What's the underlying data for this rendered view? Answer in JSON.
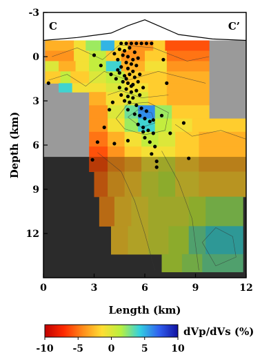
{
  "chart_data": {
    "type": "heatmap",
    "title": "",
    "xlabel": "Length (km)",
    "ylabel": "Depth (km)",
    "xlim": [
      0,
      12
    ],
    "ylim": [
      -3,
      15
    ],
    "y_inverted": true,
    "x_ticks": [
      "0",
      "3",
      "6",
      "9",
      "12"
    ],
    "x_tick_values": [
      0,
      3,
      6,
      9,
      12
    ],
    "y_ticks": [
      "-3",
      "0",
      "3",
      "6",
      "9",
      "12"
    ],
    "y_tick_values": [
      -3,
      0,
      3,
      6,
      9,
      12
    ],
    "corner_labels": {
      "left": "C",
      "right": "C’"
    },
    "colorbar": {
      "label": "dVp/dVs (%)",
      "ticks": [
        "-10",
        "-5",
        "0",
        "5",
        "10"
      ],
      "tick_values": [
        -10,
        -5,
        0,
        5,
        10
      ],
      "range": [
        -10,
        10
      ],
      "colors": [
        "#c00000",
        "#ff2a00",
        "#ff8c1a",
        "#ffdd33",
        "#b8f040",
        "#33d0e0",
        "#3060f0",
        "#1010a0"
      ]
    },
    "topography": [
      [
        0,
        -1.1
      ],
      [
        2,
        -1.3
      ],
      [
        4,
        -1.6
      ],
      [
        5,
        -2.1
      ],
      [
        6,
        -2.5
      ],
      [
        7,
        -2.0
      ],
      [
        8,
        -1.5
      ],
      [
        10,
        -1.2
      ],
      [
        12,
        -1.1
      ]
    ],
    "cells": [
      {
        "x": [
          0.1,
          1.8
        ],
        "z": [
          -1.1,
          -0.4
        ],
        "v": -3
      },
      {
        "x": [
          1.8,
          2.5
        ],
        "z": [
          -1.1,
          -0.4
        ],
        "v": -1
      },
      {
        "x": [
          2.5,
          3.4
        ],
        "z": [
          -1.1,
          -0.4
        ],
        "v": 2
      },
      {
        "x": [
          3.4,
          4.2
        ],
        "z": [
          -1.1,
          -0.4
        ],
        "v": 5
      },
      {
        "x": [
          4.2,
          5.0
        ],
        "z": [
          -1.1,
          -0.4
        ],
        "v": -1
      },
      {
        "x": [
          5.0,
          6.5
        ],
        "z": [
          -1.1,
          -0.4
        ],
        "v": -4
      },
      {
        "x": [
          6.5,
          7.2
        ],
        "z": [
          -1.1,
          -0.4
        ],
        "v": -2
      },
      {
        "x": [
          7.2,
          9.8
        ],
        "z": [
          -1.1,
          -0.4
        ],
        "v": -6
      },
      {
        "x": [
          0.1,
          1.8
        ],
        "z": [
          -0.4,
          0.3
        ],
        "v": -4
      },
      {
        "x": [
          1.8,
          2.7
        ],
        "z": [
          -0.4,
          0.3
        ],
        "v": -1
      },
      {
        "x": [
          2.7,
          3.7
        ],
        "z": [
          -0.4,
          0.3
        ],
        "v": 1
      },
      {
        "x": [
          3.7,
          4.6
        ],
        "z": [
          -0.4,
          0.3
        ],
        "v": -2
      },
      {
        "x": [
          4.6,
          6.0
        ],
        "z": [
          -0.4,
          0.3
        ],
        "v": -4
      },
      {
        "x": [
          6.0,
          7.3
        ],
        "z": [
          -0.4,
          0.3
        ],
        "v": -2
      },
      {
        "x": [
          7.3,
          9.8
        ],
        "z": [
          -0.4,
          0.3
        ],
        "v": -5
      },
      {
        "x": [
          0.1,
          0.9
        ],
        "z": [
          0.3,
          1.0
        ],
        "v": 0
      },
      {
        "x": [
          0.9,
          1.9
        ],
        "z": [
          0.3,
          1.0
        ],
        "v": -3
      },
      {
        "x": [
          1.9,
          2.7
        ],
        "z": [
          0.3,
          1.0
        ],
        "v": -1
      },
      {
        "x": [
          2.7,
          3.7
        ],
        "z": [
          0.3,
          1.0
        ],
        "v": 1
      },
      {
        "x": [
          3.7,
          4.6
        ],
        "z": [
          0.3,
          1.0
        ],
        "v": 4
      },
      {
        "x": [
          4.6,
          6.0
        ],
        "z": [
          0.3,
          1.0
        ],
        "v": -3
      },
      {
        "x": [
          6.0,
          7.3
        ],
        "z": [
          0.3,
          1.0
        ],
        "v": -1
      },
      {
        "x": [
          7.3,
          9.8
        ],
        "z": [
          0.3,
          1.0
        ],
        "v": -4
      },
      {
        "x": [
          0.1,
          1.0
        ],
        "z": [
          1.0,
          1.8
        ],
        "v": -2
      },
      {
        "x": [
          1.0,
          1.6
        ],
        "z": [
          1.0,
          1.8
        ],
        "v": 1
      },
      {
        "x": [
          1.6,
          2.7
        ],
        "z": [
          1.0,
          1.8
        ],
        "v": -2
      },
      {
        "x": [
          2.7,
          3.7
        ],
        "z": [
          1.0,
          1.8
        ],
        "v": 0
      },
      {
        "x": [
          3.7,
          4.8
        ],
        "z": [
          1.0,
          1.8
        ],
        "v": 1
      },
      {
        "x": [
          4.8,
          6.0
        ],
        "z": [
          1.0,
          1.8
        ],
        "v": -2
      },
      {
        "x": [
          6.0,
          7.3
        ],
        "z": [
          1.0,
          1.8
        ],
        "v": -2
      },
      {
        "x": [
          7.3,
          9.8
        ],
        "z": [
          1.0,
          1.8
        ],
        "v": -3
      },
      {
        "x": [
          0.9,
          1.7
        ],
        "z": [
          1.8,
          2.4
        ],
        "v": 4
      },
      {
        "x": [
          1.7,
          2.7
        ],
        "z": [
          1.8,
          2.4
        ],
        "v": -1
      },
      {
        "x": [
          2.7,
          3.7
        ],
        "z": [
          1.8,
          2.4
        ],
        "v": -1
      },
      {
        "x": [
          3.7,
          4.8
        ],
        "z": [
          1.8,
          2.4
        ],
        "v": 0
      },
      {
        "x": [
          4.8,
          6.2
        ],
        "z": [
          1.8,
          2.4
        ],
        "v": -1
      },
      {
        "x": [
          6.2,
          7.3
        ],
        "z": [
          1.8,
          2.4
        ],
        "v": -2
      },
      {
        "x": [
          7.3,
          9.8
        ],
        "z": [
          1.8,
          2.4
        ],
        "v": -3
      },
      {
        "x": [
          2.7,
          3.7
        ],
        "z": [
          2.4,
          3.3
        ],
        "v": -3
      },
      {
        "x": [
          3.7,
          4.8
        ],
        "z": [
          2.4,
          3.3
        ],
        "v": -1
      },
      {
        "x": [
          4.8,
          6.2
        ],
        "z": [
          2.4,
          3.3
        ],
        "v": 0
      },
      {
        "x": [
          6.2,
          7.3
        ],
        "z": [
          2.4,
          3.3
        ],
        "v": -2
      },
      {
        "x": [
          7.3,
          9.8
        ],
        "z": [
          2.4,
          3.3
        ],
        "v": -3
      },
      {
        "x": [
          2.7,
          3.8
        ],
        "z": [
          3.3,
          4.2
        ],
        "v": -4
      },
      {
        "x": [
          3.8,
          4.8
        ],
        "z": [
          3.3,
          4.2
        ],
        "v": 0
      },
      {
        "x": [
          4.8,
          5.6
        ],
        "z": [
          3.3,
          4.2
        ],
        "v": 3
      },
      {
        "x": [
          5.6,
          6.6
        ],
        "z": [
          3.3,
          4.2
        ],
        "v": 6
      },
      {
        "x": [
          6.6,
          7.6
        ],
        "z": [
          3.3,
          4.2
        ],
        "v": 2
      },
      {
        "x": [
          7.6,
          9.8
        ],
        "z": [
          3.3,
          4.2
        ],
        "v": -2
      },
      {
        "x": [
          2.7,
          3.8
        ],
        "z": [
          4.2,
          5.1
        ],
        "v": -4
      },
      {
        "x": [
          3.8,
          4.8
        ],
        "z": [
          4.2,
          5.1
        ],
        "v": -1
      },
      {
        "x": [
          4.8,
          5.6
        ],
        "z": [
          4.2,
          5.1
        ],
        "v": 2
      },
      {
        "x": [
          5.6,
          6.6
        ],
        "z": [
          4.2,
          5.1
        ],
        "v": 4
      },
      {
        "x": [
          6.6,
          7.6
        ],
        "z": [
          4.2,
          5.1
        ],
        "v": 1
      },
      {
        "x": [
          7.6,
          8.8
        ],
        "z": [
          4.2,
          5.1
        ],
        "v": -1
      },
      {
        "x": [
          8.8,
          12.0
        ],
        "z": [
          4.2,
          5.1
        ],
        "v": -2
      },
      {
        "x": [
          2.7,
          3.8
        ],
        "z": [
          5.1,
          6.1
        ],
        "v": -5
      },
      {
        "x": [
          3.8,
          4.8
        ],
        "z": [
          5.1,
          6.1
        ],
        "v": -3
      },
      {
        "x": [
          4.8,
          5.8
        ],
        "z": [
          5.1,
          6.1
        ],
        "v": -1
      },
      {
        "x": [
          5.8,
          6.8
        ],
        "z": [
          5.1,
          6.1
        ],
        "v": 1
      },
      {
        "x": [
          6.8,
          7.8
        ],
        "z": [
          5.1,
          6.1
        ],
        "v": 0
      },
      {
        "x": [
          7.8,
          9.2
        ],
        "z": [
          5.1,
          6.1
        ],
        "v": -2
      },
      {
        "x": [
          9.2,
          12.0
        ],
        "z": [
          5.1,
          6.1
        ],
        "v": -3
      },
      {
        "x": [
          2.7,
          3.8
        ],
        "z": [
          6.1,
          6.8
        ],
        "v": -6
      },
      {
        "x": [
          3.8,
          4.8
        ],
        "z": [
          6.1,
          6.8
        ],
        "v": -4
      },
      {
        "x": [
          4.8,
          5.8
        ],
        "z": [
          6.1,
          6.8
        ],
        "v": -2
      },
      {
        "x": [
          5.8,
          6.8
        ],
        "z": [
          6.1,
          6.8
        ],
        "v": -1
      },
      {
        "x": [
          6.8,
          7.8
        ],
        "z": [
          6.1,
          6.8
        ],
        "v": -1
      },
      {
        "x": [
          7.8,
          9.2
        ],
        "z": [
          6.1,
          6.8
        ],
        "v": -2
      },
      {
        "x": [
          9.2,
          12.0
        ],
        "z": [
          6.1,
          6.8
        ],
        "v": -3
      },
      {
        "x": [
          2.7,
          3.8
        ],
        "z": [
          6.8,
          7.8
        ],
        "v": -6
      },
      {
        "x": [
          3.8,
          4.8
        ],
        "z": [
          6.8,
          7.8
        ],
        "v": -4
      },
      {
        "x": [
          4.8,
          5.8
        ],
        "z": [
          6.8,
          7.8
        ],
        "v": -3
      },
      {
        "x": [
          5.8,
          6.8
        ],
        "z": [
          6.8,
          7.8
        ],
        "v": -1
      },
      {
        "x": [
          6.8,
          7.8
        ],
        "z": [
          6.8,
          7.8
        ],
        "v": 0
      },
      {
        "x": [
          7.8,
          9.2
        ],
        "z": [
          6.8,
          7.8
        ],
        "v": -2
      },
      {
        "x": [
          9.2,
          12.0
        ],
        "z": [
          6.8,
          7.8
        ],
        "v": -3
      },
      {
        "x": [
          3.0,
          3.8
        ],
        "z": [
          7.8,
          9.5
        ],
        "v": -5
      },
      {
        "x": [
          3.8,
          4.8
        ],
        "z": [
          7.8,
          9.5
        ],
        "v": -3
      },
      {
        "x": [
          4.8,
          5.8
        ],
        "z": [
          7.8,
          9.5
        ],
        "v": -2
      },
      {
        "x": [
          5.8,
          6.8
        ],
        "z": [
          7.8,
          9.5
        ],
        "v": 0
      },
      {
        "x": [
          6.8,
          7.8
        ],
        "z": [
          7.8,
          9.5
        ],
        "v": 1
      },
      {
        "x": [
          7.8,
          9.2
        ],
        "z": [
          7.8,
          9.5
        ],
        "v": -1
      },
      {
        "x": [
          9.2,
          12.0
        ],
        "z": [
          7.8,
          9.5
        ],
        "v": -2
      },
      {
        "x": [
          3.3,
          4.2
        ],
        "z": [
          9.5,
          11.5
        ],
        "v": -4
      },
      {
        "x": [
          4.2,
          5.2
        ],
        "z": [
          9.5,
          11.5
        ],
        "v": -2
      },
      {
        "x": [
          5.2,
          6.2
        ],
        "z": [
          9.5,
          11.5
        ],
        "v": -1
      },
      {
        "x": [
          6.2,
          7.4
        ],
        "z": [
          9.5,
          11.5
        ],
        "v": 0
      },
      {
        "x": [
          7.4,
          8.6
        ],
        "z": [
          9.5,
          11.5
        ],
        "v": 0
      },
      {
        "x": [
          8.6,
          9.6
        ],
        "z": [
          9.5,
          11.5
        ],
        "v": 1
      },
      {
        "x": [
          9.6,
          11.8
        ],
        "z": [
          9.5,
          11.5
        ],
        "v": 2
      },
      {
        "x": [
          4.0,
          5.0
        ],
        "z": [
          11.5,
          13.4
        ],
        "v": -2
      },
      {
        "x": [
          5.0,
          6.2
        ],
        "z": [
          11.5,
          13.4
        ],
        "v": -1
      },
      {
        "x": [
          6.2,
          7.4
        ],
        "z": [
          11.5,
          13.4
        ],
        "v": 0
      },
      {
        "x": [
          7.4,
          8.6
        ],
        "z": [
          11.5,
          13.4
        ],
        "v": 1
      },
      {
        "x": [
          8.6,
          9.6
        ],
        "z": [
          11.5,
          13.4
        ],
        "v": 3
      },
      {
        "x": [
          9.6,
          11.8
        ],
        "z": [
          11.5,
          13.4
        ],
        "v": 4
      },
      {
        "x": [
          7.0,
          8.2
        ],
        "z": [
          13.4,
          14.6
        ],
        "v": 1
      },
      {
        "x": [
          8.2,
          9.4
        ],
        "z": [
          13.4,
          14.6
        ],
        "v": 2
      },
      {
        "x": [
          9.4,
          11.8
        ],
        "z": [
          13.4,
          14.6
        ],
        "v": 3
      }
    ],
    "earthquakes": [
      [
        4.6,
        -0.9
      ],
      [
        4.9,
        -0.9
      ],
      [
        5.2,
        -0.9
      ],
      [
        5.5,
        -0.9
      ],
      [
        5.8,
        -0.9
      ],
      [
        6.1,
        -0.9
      ],
      [
        6.4,
        -0.9
      ],
      [
        4.5,
        -0.5
      ],
      [
        4.8,
        -0.4
      ],
      [
        5.1,
        -0.6
      ],
      [
        5.4,
        -0.3
      ],
      [
        4.7,
        -0.1
      ],
      [
        5.0,
        0.0
      ],
      [
        5.3,
        0.2
      ],
      [
        4.4,
        0.2
      ],
      [
        4.9,
        0.4
      ],
      [
        5.2,
        0.5
      ],
      [
        5.5,
        0.6
      ],
      [
        4.6,
        0.7
      ],
      [
        5.0,
        0.8
      ],
      [
        5.3,
        1.0
      ],
      [
        4.5,
        1.1
      ],
      [
        4.8,
        1.3
      ],
      [
        5.1,
        1.2
      ],
      [
        5.4,
        1.4
      ],
      [
        4.3,
        1.5
      ],
      [
        4.7,
        1.7
      ],
      [
        5.0,
        1.8
      ],
      [
        5.3,
        1.9
      ],
      [
        5.6,
        1.7
      ],
      [
        4.5,
        2.1
      ],
      [
        4.9,
        2.2
      ],
      [
        5.2,
        2.4
      ],
      [
        5.5,
        2.3
      ],
      [
        4.6,
        2.6
      ],
      [
        5.0,
        2.7
      ],
      [
        5.3,
        2.8
      ],
      [
        5.7,
        2.6
      ],
      [
        4.8,
        3.0
      ],
      [
        5.1,
        3.1
      ],
      [
        5.5,
        3.3
      ],
      [
        5.8,
        3.5
      ],
      [
        6.1,
        3.7
      ],
      [
        5.4,
        3.9
      ],
      [
        5.7,
        4.0
      ],
      [
        6.0,
        4.2
      ],
      [
        6.3,
        4.4
      ],
      [
        5.6,
        4.6
      ],
      [
        5.9,
        4.8
      ],
      [
        6.2,
        5.0
      ],
      [
        6.5,
        5.2
      ],
      [
        6.0,
        5.5
      ],
      [
        6.3,
        5.8
      ],
      [
        6.6,
        6.1
      ],
      [
        6.4,
        6.6
      ],
      [
        6.7,
        7.1
      ],
      [
        6.7,
        7.5
      ],
      [
        5.0,
        5.7
      ],
      [
        4.2,
        5.9
      ],
      [
        3.6,
        4.8
      ],
      [
        3.9,
        3.6
      ],
      [
        4.1,
        3.1
      ],
      [
        3.2,
        5.8
      ],
      [
        2.9,
        7.0
      ],
      [
        0.3,
        1.8
      ],
      [
        3.0,
        -0.1
      ],
      [
        3.4,
        0.6
      ],
      [
        4.0,
        1.2
      ],
      [
        7.1,
        0.2
      ],
      [
        7.3,
        1.8
      ],
      [
        7.0,
        4.0
      ],
      [
        8.3,
        4.5
      ],
      [
        7.5,
        5.2
      ],
      [
        8.6,
        6.9
      ],
      [
        5.9,
        5.1
      ],
      [
        4.9,
        1.5
      ],
      [
        5.2,
        2.0
      ],
      [
        4.4,
        0.9
      ],
      [
        5.6,
        0.1
      ],
      [
        5.7,
        1.2
      ],
      [
        4.2,
        -0.2
      ],
      [
        5.9,
        2.1
      ],
      [
        5.0,
        3.6
      ],
      [
        6.5,
        4.3
      ]
    ]
  }
}
